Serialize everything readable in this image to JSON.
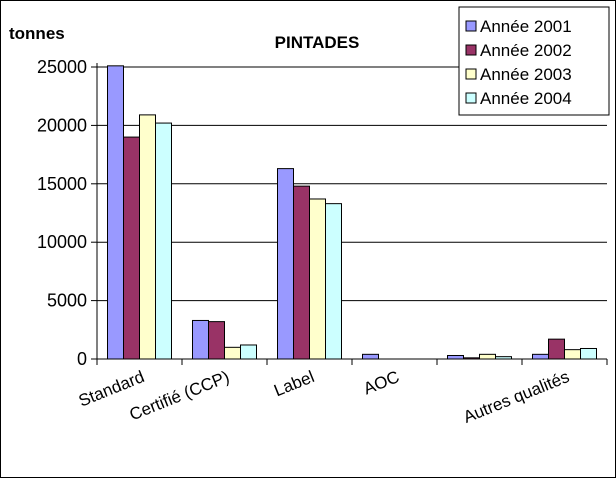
{
  "chart_data": {
    "type": "bar",
    "title": "PINTADES",
    "ylabel": "tonnes",
    "xlabel": "",
    "ylim": [
      0,
      25000
    ],
    "yticks": [
      0,
      5000,
      10000,
      15000,
      20000,
      25000
    ],
    "grid": true,
    "legend_position": "top-right",
    "categories": [
      "Standard",
      "Certifié (CCP)",
      "Label",
      "AOC",
      "",
      "Autres qualités"
    ],
    "series": [
      {
        "name": "Année 2001",
        "color": "#9999ff",
        "values": [
          25100,
          3300,
          16300,
          400,
          300,
          400
        ]
      },
      {
        "name": "Année 2002",
        "color": "#993366",
        "values": [
          19000,
          3200,
          14800,
          0,
          100,
          1700
        ]
      },
      {
        "name": "Année 2003",
        "color": "#ffffcc",
        "values": [
          20900,
          1000,
          13700,
          0,
          400,
          800
        ]
      },
      {
        "name": "Année 2004",
        "color": "#ccffff",
        "values": [
          20200,
          1200,
          13300,
          0,
          200,
          900
        ]
      }
    ]
  }
}
